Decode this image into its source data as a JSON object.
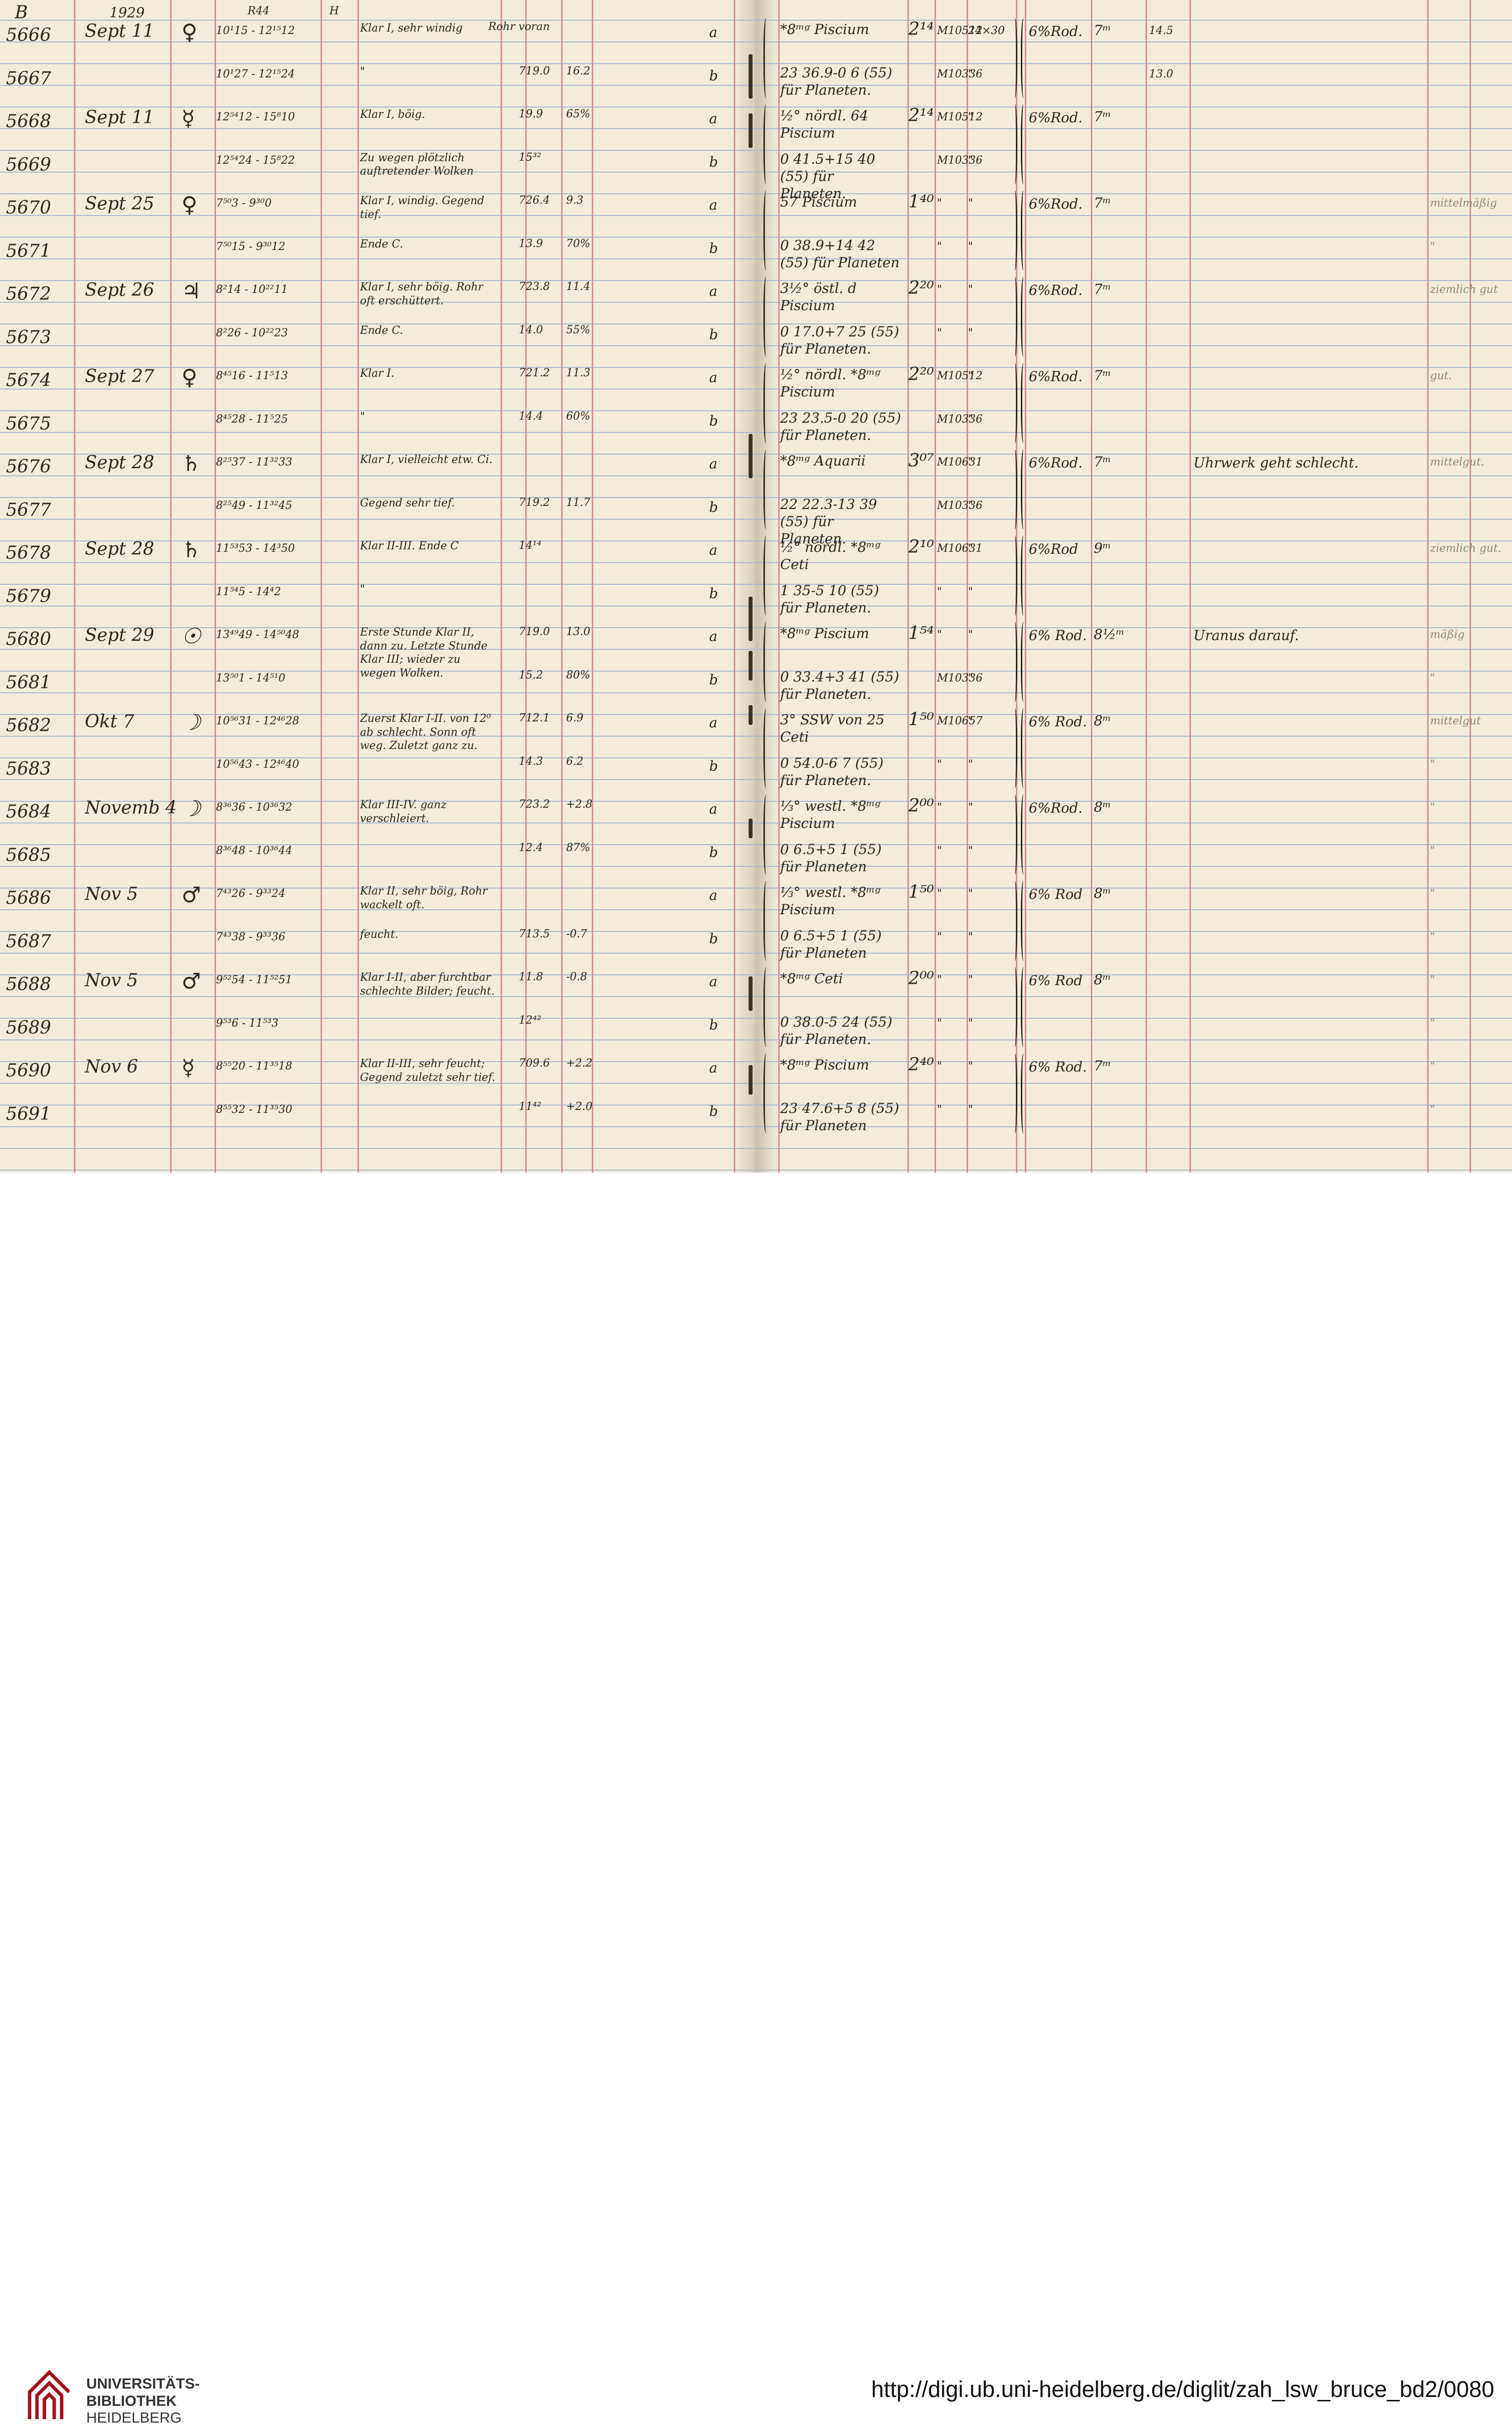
{
  "header": {
    "letter": "B",
    "year": "1929",
    "col_r": "R44",
    "col_h": "H",
    "col_rohr": "Rohr voran"
  },
  "rows": [
    {
      "num": "5666",
      "date": "Sept 11",
      "planet": "♀",
      "time": "10¹15 - 12¹⁵12",
      "remark": "Klar I, sehr windig",
      "baro": "",
      "temp": "",
      "ab": "a",
      "obj": "*8ᵐᵍ Piscium",
      "mag": "2¹⁴",
      "plate": "M10512",
      "size": "24×30",
      "filter": "6%Rod.",
      "exp": "7ᵐ",
      "x": "14.5",
      "note": "",
      "quality": ""
    },
    {
      "num": "5667",
      "date": "",
      "planet": "",
      "time": "10¹27 - 12¹⁵24",
      "remark": "\"",
      "baro": "719.0",
      "temp": "16.2",
      "ab": "b",
      "obj": "23 36.9-0 6 (55) für Planeten.",
      "mag": "",
      "plate": "M10336",
      "size": "\"",
      "filter": "",
      "exp": "",
      "x": "13.0",
      "note": "",
      "quality": ""
    },
    {
      "num": "5668",
      "date": "Sept 11",
      "planet": "☿",
      "time": "12⁵⁴12 - 15⁸10",
      "remark": "Klar I, böig.",
      "baro": "19.9",
      "temp": "65%",
      "ab": "a",
      "obj": "½° nördl. 64 Piscium",
      "mag": "2¹⁴",
      "plate": "M10512",
      "size": "\"",
      "filter": "6%Rod.",
      "exp": "7ᵐ",
      "x": "",
      "note": "",
      "quality": ""
    },
    {
      "num": "5669",
      "date": "",
      "planet": "",
      "time": "12⁵⁴24 - 15⁸22",
      "remark": "Zu wegen plötzlich auftretender Wolken",
      "baro": "15³²",
      "temp": "",
      "ab": "b",
      "obj": "0 41.5+15 40 (55) für Planeten.",
      "mag": "",
      "plate": "M10336",
      "size": "\"",
      "filter": "",
      "exp": "",
      "x": "",
      "note": "",
      "quality": ""
    },
    {
      "num": "5670",
      "date": "Sept 25",
      "planet": "♀",
      "time": "7⁵⁰3 - 9³⁰0",
      "remark": "Klar I, windig. Gegend tief.",
      "baro": "726.4",
      "temp": "9.3",
      "ab": "a",
      "obj": "57 Piscium",
      "mag": "1⁴⁰",
      "plate": "\"",
      "size": "\"",
      "filter": "6%Rod.",
      "exp": "7ᵐ",
      "x": "",
      "note": "",
      "quality": "mittelmäßig"
    },
    {
      "num": "5671",
      "date": "",
      "planet": "",
      "time": "7⁵⁰15 - 9³⁰12",
      "remark": "Ende C.",
      "baro": "13.9",
      "temp": "70%",
      "ab": "b",
      "obj": "0 38.9+14 42 (55) für Planeten",
      "mag": "",
      "plate": "\"",
      "size": "\"",
      "filter": "",
      "exp": "",
      "x": "",
      "note": "",
      "quality": "\""
    },
    {
      "num": "5672",
      "date": "Sept 26",
      "planet": "♃",
      "time": "8²14 - 10²²11",
      "remark": "Klar I, sehr böig. Rohr oft erschüttert.",
      "baro": "723.8",
      "temp": "11.4",
      "ab": "a",
      "obj": "3½° östl. d Piscium",
      "mag": "2²⁰",
      "plate": "\"",
      "size": "\"",
      "filter": "6%Rod.",
      "exp": "7ᵐ",
      "x": "",
      "note": "",
      "quality": "ziemlich gut"
    },
    {
      "num": "5673",
      "date": "",
      "planet": "",
      "time": "8²26 - 10²²23",
      "remark": "Ende C.",
      "baro": "14.0",
      "temp": "55%",
      "ab": "b",
      "obj": "0 17.0+7 25 (55) für Planeten.",
      "mag": "",
      "plate": "\"",
      "size": "\"",
      "filter": "",
      "exp": "",
      "x": "",
      "note": "",
      "quality": ""
    },
    {
      "num": "5674",
      "date": "Sept 27",
      "planet": "♀",
      "time": "8⁴⁵16 - 11⁵13",
      "remark": "Klar I.",
      "baro": "721.2",
      "temp": "11.3",
      "ab": "a",
      "obj": "½° nördl. *8ᵐᵍ Piscium",
      "mag": "2²⁰",
      "plate": "M10512",
      "size": "\"",
      "filter": "6%Rod.",
      "exp": "7ᵐ",
      "x": "",
      "note": "",
      "quality": "gut."
    },
    {
      "num": "5675",
      "date": "",
      "planet": "",
      "time": "8⁴⁵28 - 11⁵25",
      "remark": "\"",
      "baro": "14.4",
      "temp": "60%",
      "ab": "b",
      "obj": "23 23.5-0 20 (55) für Planeten.",
      "mag": "",
      "plate": "M10336",
      "size": "\"",
      "filter": "",
      "exp": "",
      "x": "",
      "note": "",
      "quality": ""
    },
    {
      "num": "5676",
      "date": "Sept 28",
      "planet": "♄",
      "time": "8²⁵37 - 11³²33",
      "remark": "Klar I, vielleicht etw. Ci.",
      "baro": "",
      "temp": "",
      "ab": "a",
      "obj": "*8ᵐᵍ Aquarii",
      "mag": "3⁰⁷",
      "plate": "M10631",
      "size": "\"",
      "filter": "6%Rod.",
      "exp": "7ᵐ",
      "x": "",
      "note": "Uhrwerk geht schlecht.",
      "quality": "mittelgut."
    },
    {
      "num": "5677",
      "date": "",
      "planet": "",
      "time": "8²⁵49 - 11³²45",
      "remark": "Gegend sehr tief.",
      "baro": "719.2",
      "temp": "11.7",
      "ab": "b",
      "obj": "22 22.3-13 39 (55) für Planeten.",
      "mag": "",
      "plate": "M10336",
      "size": "\"",
      "filter": "",
      "exp": "",
      "x": "",
      "note": "",
      "quality": ""
    },
    {
      "num": "5678",
      "date": "Sept 28",
      "planet": "♄",
      "time": "11⁵³53 - 14³50",
      "remark": "Klar II-III. Ende C",
      "baro": "14¹⁴",
      "temp": "",
      "ab": "a",
      "obj": "½° nördl. *8ᵐᵍ Ceti",
      "mag": "2¹⁰",
      "plate": "M10631",
      "size": "\"",
      "filter": "6%Rod",
      "exp": "9ᵐ",
      "x": "",
      "note": "",
      "quality": "ziemlich gut."
    },
    {
      "num": "5679",
      "date": "",
      "planet": "",
      "time": "11⁵⁴5 - 14⁴2",
      "remark": "\"",
      "baro": "",
      "temp": "",
      "ab": "b",
      "obj": "1 35-5 10 (55) für Planeten.",
      "mag": "",
      "plate": "\"",
      "size": "\"",
      "filter": "",
      "exp": "",
      "x": "",
      "note": "",
      "quality": ""
    },
    {
      "num": "5680",
      "date": "Sept 29",
      "planet": "☉",
      "time": "13⁴⁹49 - 14⁵⁰48",
      "remark": "Erste Stunde Klar II, dann zu. Letzte Stunde Klar III; wieder zu wegen Wolken.",
      "baro": "719.0",
      "temp": "13.0",
      "ab": "a",
      "obj": "*8ᵐᵍ Piscium",
      "mag": "1⁵⁴",
      "plate": "\"",
      "size": "\"",
      "filter": "6% Rod.",
      "exp": "8½ᵐ",
      "x": "",
      "note": "Uranus darauf.",
      "quality": "mäßig"
    },
    {
      "num": "5681",
      "date": "",
      "planet": "",
      "time": "13⁵⁰1 - 14⁵¹0",
      "remark": "",
      "baro": "15.2",
      "temp": "80%",
      "ab": "b",
      "obj": "0 33.4+3 41 (55) für Planeten.",
      "mag": "",
      "plate": "M10336",
      "size": "\"",
      "filter": "",
      "exp": "",
      "x": "",
      "note": "",
      "quality": "\""
    },
    {
      "num": "5682",
      "date": "Okt 7",
      "planet": "☽",
      "time": "10⁵⁶31 - 12⁴⁶28",
      "remark": "Zuerst Klar I-II. von 12⁰ ab schlecht. Sonn oft weg. Zuletzt ganz zu.",
      "baro": "712.1",
      "temp": "6.9",
      "ab": "a",
      "obj": "3° SSW von 25 Ceti",
      "mag": "1⁵⁰",
      "plate": "M10657",
      "size": "\"",
      "filter": "6% Rod.",
      "exp": "8ᵐ",
      "x": "",
      "note": "",
      "quality": "mittelgut"
    },
    {
      "num": "5683",
      "date": "",
      "planet": "",
      "time": "10⁵⁶43 - 12⁴⁶40",
      "remark": "",
      "baro": "14.3",
      "temp": "6.2",
      "ab": "b",
      "obj": "0 54.0-6 7 (55) für Planeten.",
      "mag": "",
      "plate": "\"",
      "size": "\"",
      "filter": "",
      "exp": "",
      "x": "",
      "note": "",
      "quality": "\""
    },
    {
      "num": "5684",
      "date": "Novemb 4",
      "planet": "☽",
      "time": "8³⁶36 - 10³⁶32",
      "remark": "Klar III-IV. ganz verschleiert.",
      "baro": "723.2",
      "temp": "+2.8",
      "ab": "a",
      "obj": "⅓° westl. *8ᵐᵍ Piscium",
      "mag": "2⁰⁰",
      "plate": "\"",
      "size": "\"",
      "filter": "6%Rod.",
      "exp": "8ᵐ",
      "x": "",
      "note": "",
      "quality": "\""
    },
    {
      "num": "5685",
      "date": "",
      "planet": "",
      "time": "8³⁶48 - 10³⁶44",
      "remark": "",
      "baro": "12.4",
      "temp": "87%",
      "ab": "b",
      "obj": "0 6.5+5 1 (55) für Planeten",
      "mag": "",
      "plate": "\"",
      "size": "\"",
      "filter": "",
      "exp": "",
      "x": "",
      "note": "",
      "quality": "\""
    },
    {
      "num": "5686",
      "date": "Nov 5",
      "planet": "♂",
      "time": "7⁴³26 - 9³³24",
      "remark": "Klar II, sehr böig, Rohr wackelt oft.",
      "baro": "",
      "temp": "",
      "ab": "a",
      "obj": "⅓° westl. *8ᵐᵍ Piscium",
      "mag": "1⁵⁰",
      "plate": "\"",
      "size": "\"",
      "filter": "6% Rod",
      "exp": "8ᵐ",
      "x": "",
      "note": "",
      "quality": "\""
    },
    {
      "num": "5687",
      "date": "",
      "planet": "",
      "time": "7⁴³38 - 9³³36",
      "remark": "feucht.",
      "baro": "713.5",
      "temp": "-0.7",
      "ab": "b",
      "obj": "0 6.5+5 1 (55) für Planeten",
      "mag": "",
      "plate": "\"",
      "size": "\"",
      "filter": "",
      "exp": "",
      "x": "",
      "note": "",
      "quality": "\""
    },
    {
      "num": "5688",
      "date": "Nov 5",
      "planet": "♂",
      "time": "9⁵²54 - 11⁵²51",
      "remark": "Klar I-II, aber furchtbar schlechte Bilder; feucht.",
      "baro": "11.8",
      "temp": "-0.8",
      "ab": "a",
      "obj": "*8ᵐᵍ Ceti",
      "mag": "2⁰⁰",
      "plate": "\"",
      "size": "\"",
      "filter": "6% Rod",
      "exp": "8ᵐ",
      "x": "",
      "note": "",
      "quality": "\""
    },
    {
      "num": "5689",
      "date": "",
      "planet": "",
      "time": "9⁵³6 - 11⁵³3",
      "remark": "",
      "baro": "12⁴²",
      "temp": "",
      "ab": "b",
      "obj": "0 38.0-5 24 (55) für Planeten.",
      "mag": "",
      "plate": "\"",
      "size": "\"",
      "filter": "",
      "exp": "",
      "x": "",
      "note": "",
      "quality": "\""
    },
    {
      "num": "5690",
      "date": "Nov 6",
      "planet": "☿",
      "time": "8⁵⁵20 - 11³⁵18",
      "remark": "Klar II-III, sehr feucht; Gegend zuletzt sehr tief.",
      "baro": "709.6",
      "temp": "+2.2",
      "ab": "a",
      "obj": "*8ᵐᵍ Piscium",
      "mag": "2⁴⁰",
      "plate": "\"",
      "size": "\"",
      "filter": "6% Rod.",
      "exp": "7ᵐ",
      "x": "",
      "note": "",
      "quality": "\""
    },
    {
      "num": "5691",
      "date": "",
      "planet": "",
      "time": "8⁵⁵32 - 11³⁵30",
      "remark": "",
      "baro": "11⁴²",
      "temp": "+2.0",
      "ab": "b",
      "obj": "23 47.6+5 8 (55) für Planeten",
      "mag": "",
      "plate": "\"",
      "size": "\"",
      "filter": "",
      "exp": "",
      "x": "",
      "note": "",
      "quality": "\""
    }
  ],
  "footer": {
    "lib_line1": "UNIVERSITÄTS-",
    "lib_line2": "BIBLIOTHEK",
    "lib_line3": "HEIDELBERG",
    "url": "http://digi.ub.uni-heidelberg.de/diglit/zah_lsw_bruce_bd2/0080"
  },
  "colors": {
    "paper": "#f3ecdd",
    "ruled_line": "#a9b9d3",
    "margin_line": "#d98c8c",
    "ink": "#2b2620",
    "logo_red": "#a3121a"
  },
  "icons": [
    "university-library-logo"
  ]
}
